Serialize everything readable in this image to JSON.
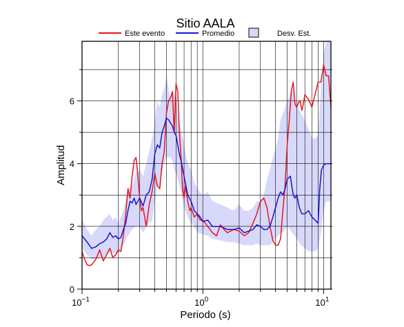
{
  "chart_data": {
    "type": "line",
    "title": "Sitio AALA",
    "xlabel": "Periodo (s)",
    "ylabel": "Amplitud",
    "x_scale": "log",
    "xlim": [
      0.1,
      11.5
    ],
    "ylim": [
      0,
      7.9
    ],
    "x_ticks": [
      {
        "value": 0.1,
        "base": "10",
        "exp": "−1"
      },
      {
        "value": 1,
        "base": "10",
        "exp": "0"
      },
      {
        "value": 10,
        "base": "10",
        "exp": "1"
      }
    ],
    "y_ticks": [
      0,
      2,
      4,
      6
    ],
    "grid": true,
    "legend_position": "top",
    "legend": [
      {
        "label": "Este evento",
        "kind": "line",
        "color": "#e8141a"
      },
      {
        "label": "Promedio",
        "kind": "line",
        "color": "#1414d2"
      },
      {
        "label": "Desv. Est.",
        "kind": "band",
        "color": "#d8d8fa"
      }
    ],
    "series": [
      {
        "name": "Este evento",
        "color": "#e8141a",
        "x": [
          0.1,
          0.105,
          0.11,
          0.115,
          0.12,
          0.13,
          0.14,
          0.15,
          0.16,
          0.17,
          0.18,
          0.19,
          0.2,
          0.21,
          0.22,
          0.23,
          0.24,
          0.25,
          0.26,
          0.27,
          0.28,
          0.29,
          0.3,
          0.31,
          0.32,
          0.34,
          0.36,
          0.38,
          0.4,
          0.42,
          0.44,
          0.46,
          0.48,
          0.5,
          0.52,
          0.54,
          0.56,
          0.58,
          0.6,
          0.62,
          0.64,
          0.66,
          0.68,
          0.7,
          0.72,
          0.75,
          0.78,
          0.8,
          0.85,
          0.9,
          0.95,
          1.0,
          1.1,
          1.2,
          1.3,
          1.4,
          1.5,
          1.6,
          1.8,
          2.0,
          2.2,
          2.4,
          2.6,
          2.8,
          3.0,
          3.2,
          3.4,
          3.6,
          3.8,
          4.0,
          4.2,
          4.4,
          4.6,
          4.8,
          5.0,
          5.2,
          5.4,
          5.6,
          5.8,
          6.0,
          6.2,
          6.4,
          6.6,
          6.8,
          7.0,
          7.5,
          8.0,
          8.5,
          9.0,
          9.5,
          10.0,
          10.5,
          11.0,
          11.5
        ],
        "values": [
          1.2,
          0.95,
          0.78,
          0.75,
          0.78,
          0.95,
          1.25,
          0.9,
          1.1,
          1.3,
          1.0,
          1.1,
          1.25,
          1.2,
          1.7,
          2.4,
          3.2,
          2.9,
          3.6,
          4.1,
          4.2,
          3.6,
          2.9,
          2.5,
          2.6,
          2.0,
          2.7,
          3.1,
          3.7,
          3.3,
          3.2,
          4.0,
          4.4,
          5.6,
          6.0,
          6.1,
          6.3,
          5.0,
          6.55,
          6.3,
          5.0,
          4.2,
          3.2,
          2.9,
          3.3,
          2.8,
          2.5,
          2.6,
          2.3,
          2.4,
          2.2,
          2.2,
          2.0,
          1.8,
          1.7,
          2.05,
          1.9,
          1.8,
          1.9,
          1.85,
          1.7,
          1.8,
          2.1,
          2.4,
          2.8,
          2.9,
          2.6,
          2.0,
          1.55,
          1.4,
          1.4,
          1.6,
          2.5,
          3.3,
          4.6,
          5.4,
          6.3,
          6.6,
          5.9,
          5.8,
          5.95,
          6.0,
          5.7,
          5.9,
          6.2,
          6.05,
          5.8,
          6.2,
          6.6,
          6.6,
          7.15,
          6.8,
          6.8,
          5.8
        ]
      },
      {
        "name": "Promedio",
        "color": "#1414d2",
        "x": [
          0.1,
          0.11,
          0.12,
          0.13,
          0.14,
          0.15,
          0.16,
          0.17,
          0.18,
          0.19,
          0.2,
          0.21,
          0.22,
          0.23,
          0.24,
          0.25,
          0.26,
          0.27,
          0.28,
          0.3,
          0.32,
          0.34,
          0.36,
          0.38,
          0.4,
          0.42,
          0.44,
          0.46,
          0.48,
          0.5,
          0.52,
          0.54,
          0.56,
          0.58,
          0.6,
          0.62,
          0.64,
          0.66,
          0.7,
          0.75,
          0.8,
          0.85,
          0.9,
          0.95,
          1.0,
          1.1,
          1.2,
          1.4,
          1.6,
          1.8,
          2.0,
          2.2,
          2.4,
          2.6,
          2.8,
          3.0,
          3.2,
          3.4,
          3.6,
          3.8,
          4.0,
          4.2,
          4.4,
          4.6,
          4.8,
          5.0,
          5.3,
          5.6,
          5.8,
          6.0,
          6.3,
          6.6,
          7.0,
          7.5,
          8.0,
          8.5,
          9.0,
          9.3,
          9.6,
          10.0,
          10.5,
          11.0,
          11.5
        ],
        "values": [
          1.7,
          1.5,
          1.3,
          1.35,
          1.45,
          1.5,
          1.6,
          1.8,
          1.65,
          1.7,
          1.6,
          1.65,
          1.9,
          2.1,
          2.5,
          2.8,
          2.75,
          2.9,
          2.7,
          2.9,
          2.65,
          3.0,
          3.1,
          3.5,
          4.3,
          4.6,
          4.5,
          5.0,
          5.2,
          5.45,
          5.4,
          5.3,
          5.2,
          5.0,
          4.9,
          4.6,
          4.3,
          4.1,
          3.6,
          3.0,
          2.8,
          2.5,
          2.4,
          2.3,
          2.15,
          2.2,
          2.0,
          2.0,
          1.9,
          1.9,
          1.95,
          1.8,
          1.85,
          1.9,
          2.05,
          2.0,
          1.9,
          1.9,
          2.0,
          2.3,
          2.6,
          2.9,
          3.1,
          3.0,
          3.2,
          3.5,
          3.6,
          3.0,
          2.9,
          3.0,
          2.6,
          2.4,
          2.4,
          2.5,
          2.3,
          2.2,
          2.1,
          3.2,
          3.8,
          3.95,
          4.0,
          4.0,
          4.0
        ]
      }
    ],
    "band": {
      "name": "Desv. Est.",
      "color": "#d8d8fa",
      "x": [
        0.1,
        0.11,
        0.12,
        0.13,
        0.14,
        0.15,
        0.16,
        0.17,
        0.18,
        0.19,
        0.2,
        0.22,
        0.24,
        0.26,
        0.28,
        0.3,
        0.32,
        0.34,
        0.36,
        0.38,
        0.4,
        0.42,
        0.44,
        0.46,
        0.48,
        0.5,
        0.52,
        0.54,
        0.56,
        0.58,
        0.6,
        0.62,
        0.65,
        0.7,
        0.75,
        0.8,
        0.85,
        0.9,
        1.0,
        1.1,
        1.2,
        1.4,
        1.6,
        1.8,
        2.0,
        2.2,
        2.4,
        2.6,
        2.8,
        3.0,
        3.2,
        3.4,
        3.6,
        3.8,
        4.0,
        4.2,
        4.4,
        4.6,
        5.0,
        5.5,
        6.0,
        6.5,
        7.0,
        7.5,
        8.0,
        8.5,
        9.0,
        9.5,
        10.0,
        10.5,
        11.0,
        11.5
      ],
      "upper": [
        2.2,
        1.9,
        1.7,
        1.9,
        2.0,
        2.2,
        2.3,
        2.4,
        2.2,
        2.3,
        2.1,
        2.5,
        3.2,
        3.3,
        3.7,
        3.8,
        3.6,
        4.0,
        4.4,
        4.8,
        5.3,
        6.0,
        5.8,
        6.2,
        6.4,
        6.8,
        6.4,
        6.1,
        6.3,
        6.2,
        6.0,
        5.5,
        5.2,
        4.6,
        4.0,
        3.8,
        3.4,
        3.2,
        3.0,
        3.1,
        2.8,
        2.7,
        2.6,
        2.5,
        2.7,
        2.5,
        2.5,
        2.6,
        2.8,
        2.8,
        3.0,
        3.5,
        3.8,
        4.2,
        4.5,
        4.8,
        5.4,
        5.6,
        6.0,
        6.4,
        5.9,
        5.6,
        5.4,
        5.1,
        4.8,
        4.8,
        4.9,
        6.4,
        7.5,
        7.9,
        7.9,
        7.9
      ],
      "lower": [
        1.3,
        1.1,
        0.95,
        0.95,
        1.0,
        1.0,
        1.1,
        1.2,
        1.15,
        1.15,
        1.15,
        1.4,
        1.7,
        1.9,
        2.0,
        2.0,
        1.8,
        2.0,
        2.1,
        2.2,
        2.8,
        3.3,
        3.3,
        3.7,
        4.0,
        4.2,
        4.2,
        4.2,
        4.1,
        3.8,
        3.7,
        3.5,
        3.2,
        2.6,
        2.3,
        2.1,
        2.0,
        1.8,
        1.75,
        1.7,
        1.6,
        1.55,
        1.5,
        1.5,
        1.45,
        1.4,
        1.4,
        1.4,
        1.45,
        1.4,
        1.4,
        1.4,
        1.4,
        1.5,
        1.6,
        1.7,
        1.8,
        1.8,
        2.0,
        1.8,
        1.6,
        1.4,
        1.3,
        1.2,
        1.2,
        1.2,
        1.3,
        1.8,
        2.5,
        2.8,
        2.8,
        2.8
      ]
    }
  }
}
